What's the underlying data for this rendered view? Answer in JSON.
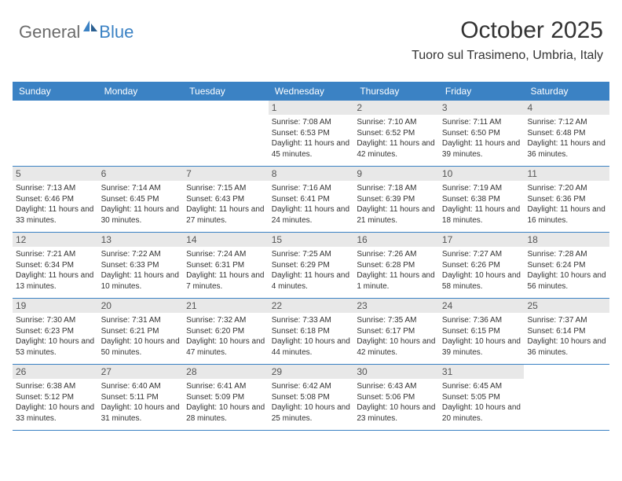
{
  "logo": {
    "text1": "General",
    "text2": "Blue",
    "icon_color": "#3b82c4"
  },
  "header": {
    "month_title": "October 2025",
    "location": "Tuoro sul Trasimeno, Umbria, Italy"
  },
  "colors": {
    "header_bg": "#3b82c4",
    "header_text": "#ffffff",
    "daynum_bg": "#e8e8e8",
    "daynum_text": "#555555",
    "body_text": "#333333",
    "row_divider": "#3b82c4"
  },
  "day_names": [
    "Sunday",
    "Monday",
    "Tuesday",
    "Wednesday",
    "Thursday",
    "Friday",
    "Saturday"
  ],
  "weeks": [
    [
      {
        "num": "",
        "lines": []
      },
      {
        "num": "",
        "lines": []
      },
      {
        "num": "",
        "lines": []
      },
      {
        "num": "1",
        "lines": [
          "Sunrise: 7:08 AM",
          "Sunset: 6:53 PM",
          "Daylight: 11 hours and 45 minutes."
        ]
      },
      {
        "num": "2",
        "lines": [
          "Sunrise: 7:10 AM",
          "Sunset: 6:52 PM",
          "Daylight: 11 hours and 42 minutes."
        ]
      },
      {
        "num": "3",
        "lines": [
          "Sunrise: 7:11 AM",
          "Sunset: 6:50 PM",
          "Daylight: 11 hours and 39 minutes."
        ]
      },
      {
        "num": "4",
        "lines": [
          "Sunrise: 7:12 AM",
          "Sunset: 6:48 PM",
          "Daylight: 11 hours and 36 minutes."
        ]
      }
    ],
    [
      {
        "num": "5",
        "lines": [
          "Sunrise: 7:13 AM",
          "Sunset: 6:46 PM",
          "Daylight: 11 hours and 33 minutes."
        ]
      },
      {
        "num": "6",
        "lines": [
          "Sunrise: 7:14 AM",
          "Sunset: 6:45 PM",
          "Daylight: 11 hours and 30 minutes."
        ]
      },
      {
        "num": "7",
        "lines": [
          "Sunrise: 7:15 AM",
          "Sunset: 6:43 PM",
          "Daylight: 11 hours and 27 minutes."
        ]
      },
      {
        "num": "8",
        "lines": [
          "Sunrise: 7:16 AM",
          "Sunset: 6:41 PM",
          "Daylight: 11 hours and 24 minutes."
        ]
      },
      {
        "num": "9",
        "lines": [
          "Sunrise: 7:18 AM",
          "Sunset: 6:39 PM",
          "Daylight: 11 hours and 21 minutes."
        ]
      },
      {
        "num": "10",
        "lines": [
          "Sunrise: 7:19 AM",
          "Sunset: 6:38 PM",
          "Daylight: 11 hours and 18 minutes."
        ]
      },
      {
        "num": "11",
        "lines": [
          "Sunrise: 7:20 AM",
          "Sunset: 6:36 PM",
          "Daylight: 11 hours and 16 minutes."
        ]
      }
    ],
    [
      {
        "num": "12",
        "lines": [
          "Sunrise: 7:21 AM",
          "Sunset: 6:34 PM",
          "Daylight: 11 hours and 13 minutes."
        ]
      },
      {
        "num": "13",
        "lines": [
          "Sunrise: 7:22 AM",
          "Sunset: 6:33 PM",
          "Daylight: 11 hours and 10 minutes."
        ]
      },
      {
        "num": "14",
        "lines": [
          "Sunrise: 7:24 AM",
          "Sunset: 6:31 PM",
          "Daylight: 11 hours and 7 minutes."
        ]
      },
      {
        "num": "15",
        "lines": [
          "Sunrise: 7:25 AM",
          "Sunset: 6:29 PM",
          "Daylight: 11 hours and 4 minutes."
        ]
      },
      {
        "num": "16",
        "lines": [
          "Sunrise: 7:26 AM",
          "Sunset: 6:28 PM",
          "Daylight: 11 hours and 1 minute."
        ]
      },
      {
        "num": "17",
        "lines": [
          "Sunrise: 7:27 AM",
          "Sunset: 6:26 PM",
          "Daylight: 10 hours and 58 minutes."
        ]
      },
      {
        "num": "18",
        "lines": [
          "Sunrise: 7:28 AM",
          "Sunset: 6:24 PM",
          "Daylight: 10 hours and 56 minutes."
        ]
      }
    ],
    [
      {
        "num": "19",
        "lines": [
          "Sunrise: 7:30 AM",
          "Sunset: 6:23 PM",
          "Daylight: 10 hours and 53 minutes."
        ]
      },
      {
        "num": "20",
        "lines": [
          "Sunrise: 7:31 AM",
          "Sunset: 6:21 PM",
          "Daylight: 10 hours and 50 minutes."
        ]
      },
      {
        "num": "21",
        "lines": [
          "Sunrise: 7:32 AM",
          "Sunset: 6:20 PM",
          "Daylight: 10 hours and 47 minutes."
        ]
      },
      {
        "num": "22",
        "lines": [
          "Sunrise: 7:33 AM",
          "Sunset: 6:18 PM",
          "Daylight: 10 hours and 44 minutes."
        ]
      },
      {
        "num": "23",
        "lines": [
          "Sunrise: 7:35 AM",
          "Sunset: 6:17 PM",
          "Daylight: 10 hours and 42 minutes."
        ]
      },
      {
        "num": "24",
        "lines": [
          "Sunrise: 7:36 AM",
          "Sunset: 6:15 PM",
          "Daylight: 10 hours and 39 minutes."
        ]
      },
      {
        "num": "25",
        "lines": [
          "Sunrise: 7:37 AM",
          "Sunset: 6:14 PM",
          "Daylight: 10 hours and 36 minutes."
        ]
      }
    ],
    [
      {
        "num": "26",
        "lines": [
          "Sunrise: 6:38 AM",
          "Sunset: 5:12 PM",
          "Daylight: 10 hours and 33 minutes."
        ]
      },
      {
        "num": "27",
        "lines": [
          "Sunrise: 6:40 AM",
          "Sunset: 5:11 PM",
          "Daylight: 10 hours and 31 minutes."
        ]
      },
      {
        "num": "28",
        "lines": [
          "Sunrise: 6:41 AM",
          "Sunset: 5:09 PM",
          "Daylight: 10 hours and 28 minutes."
        ]
      },
      {
        "num": "29",
        "lines": [
          "Sunrise: 6:42 AM",
          "Sunset: 5:08 PM",
          "Daylight: 10 hours and 25 minutes."
        ]
      },
      {
        "num": "30",
        "lines": [
          "Sunrise: 6:43 AM",
          "Sunset: 5:06 PM",
          "Daylight: 10 hours and 23 minutes."
        ]
      },
      {
        "num": "31",
        "lines": [
          "Sunrise: 6:45 AM",
          "Sunset: 5:05 PM",
          "Daylight: 10 hours and 20 minutes."
        ]
      },
      {
        "num": "",
        "lines": []
      }
    ]
  ]
}
